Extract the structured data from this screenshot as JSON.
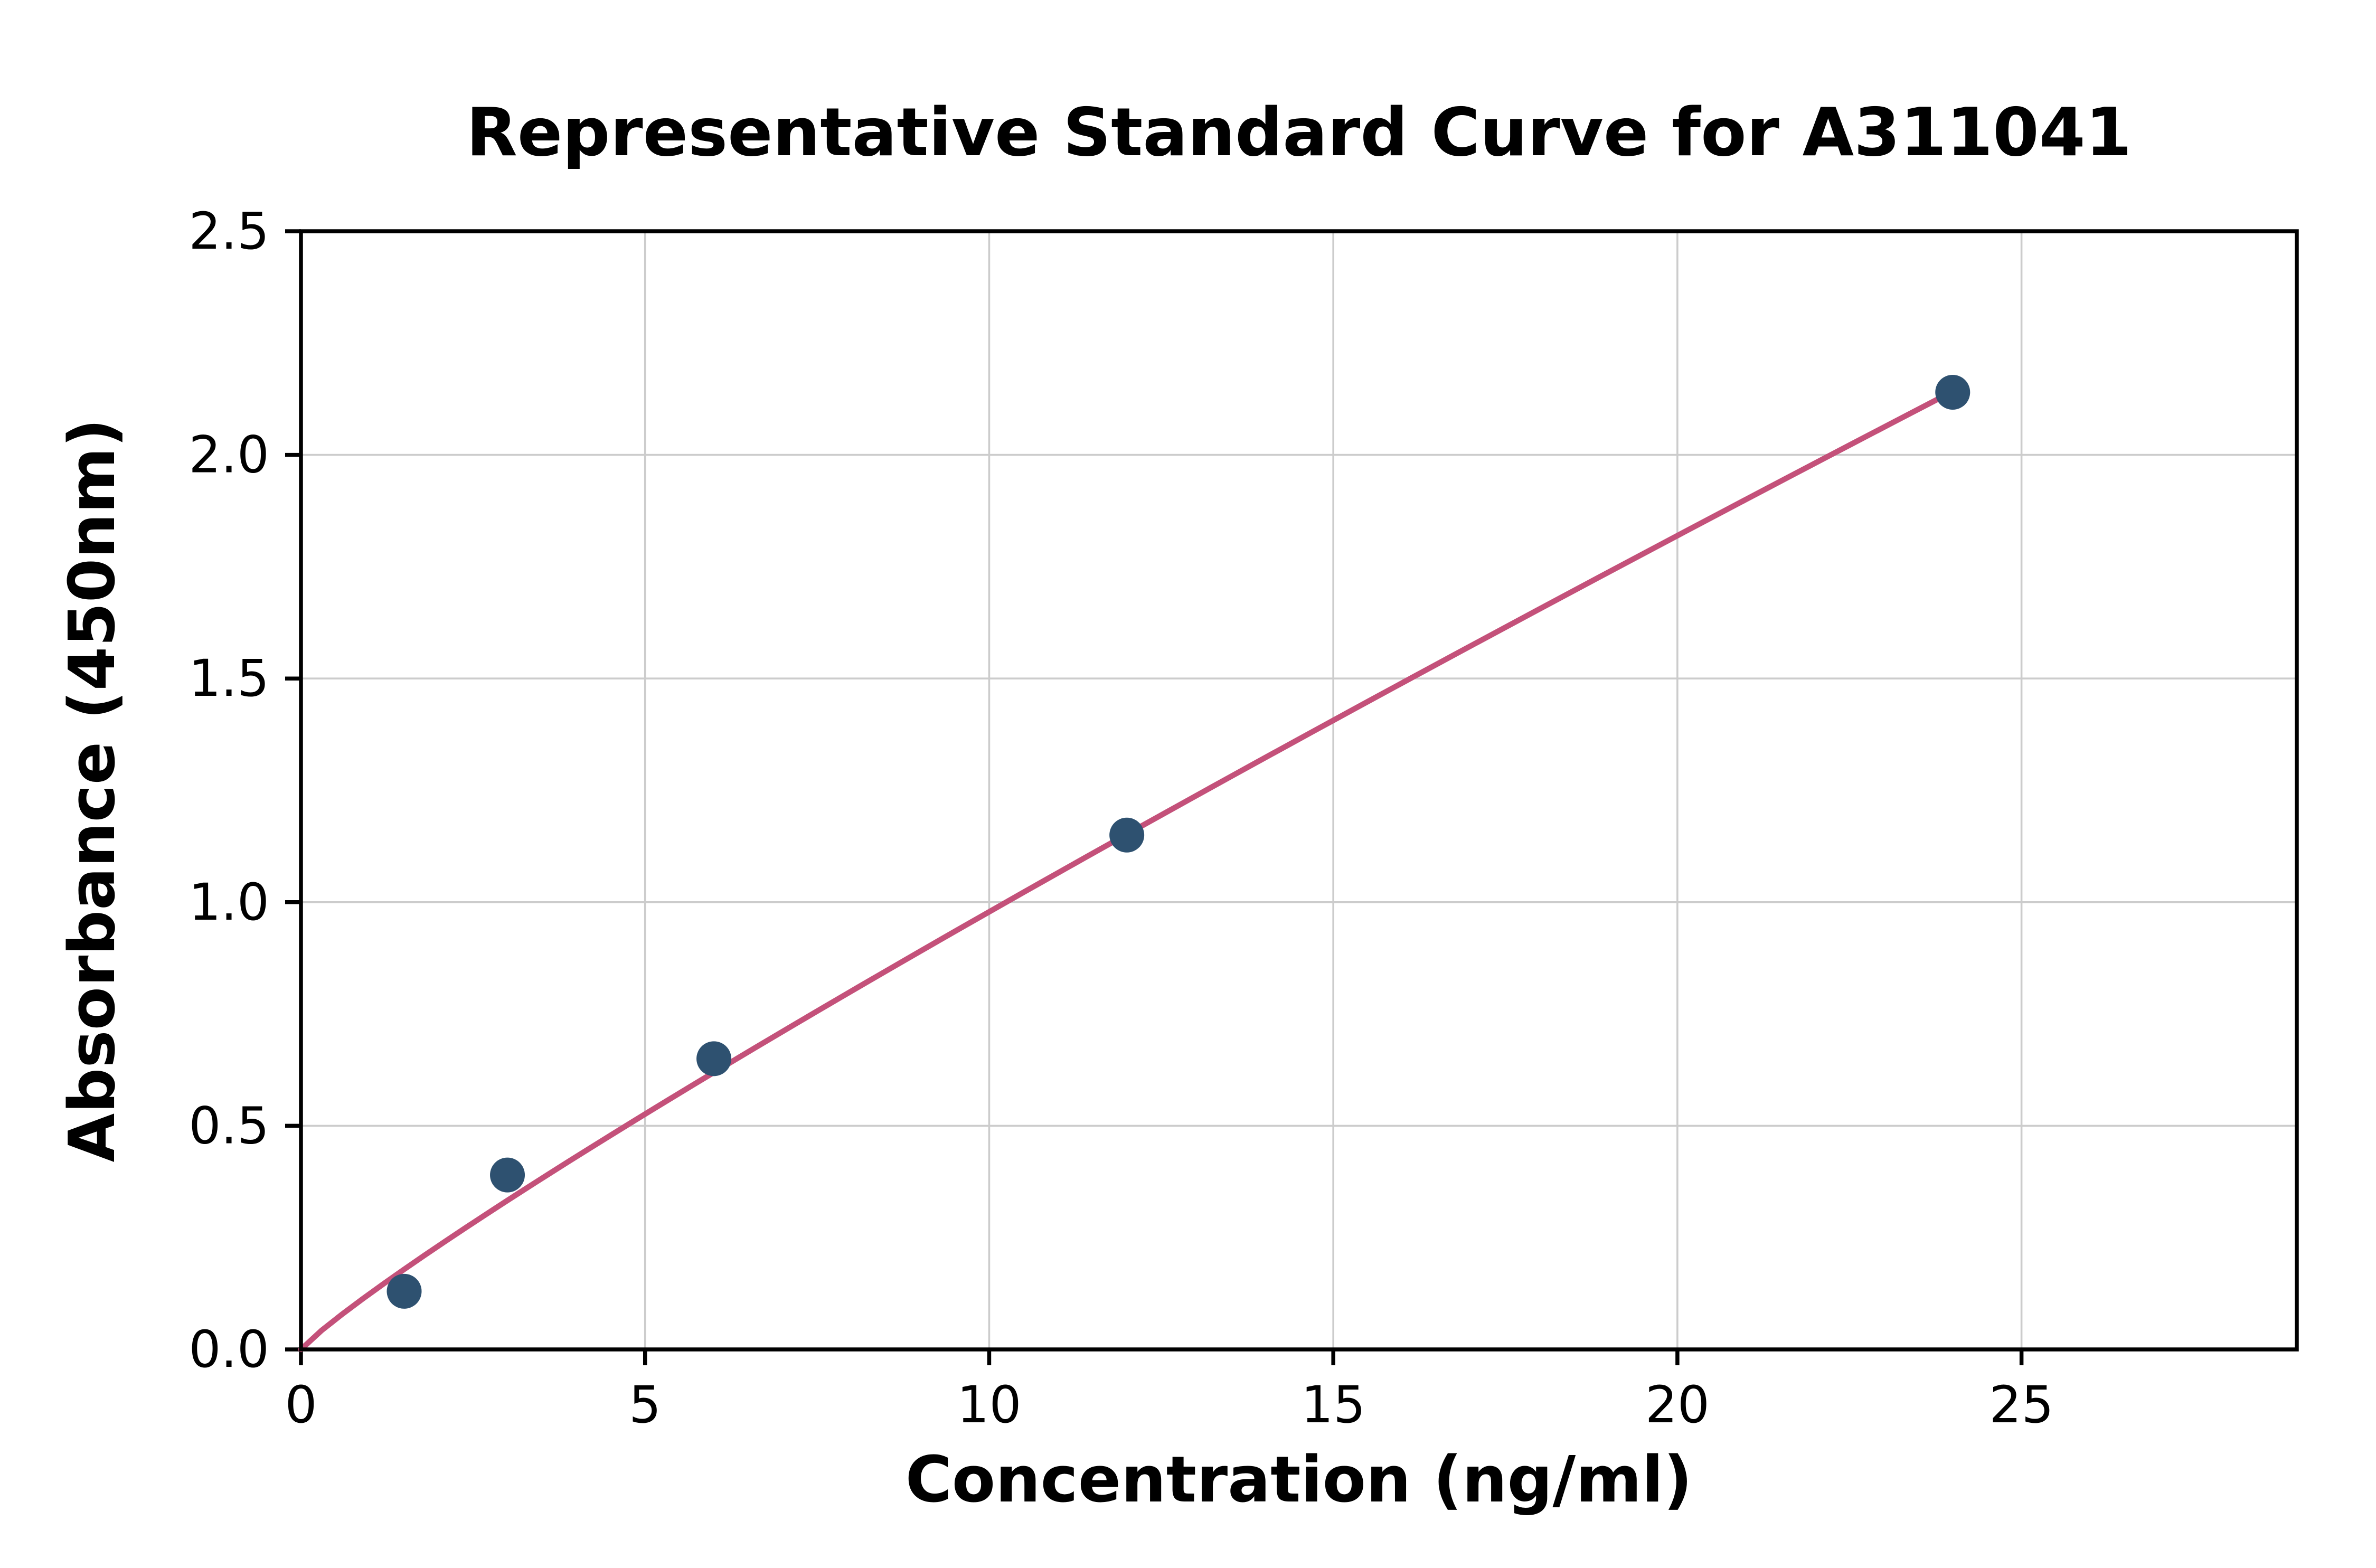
{
  "chart_data": {
    "type": "scatter",
    "title": "Representative Standard Curve for A311041",
    "xlabel": "Concentration (ng/ml)",
    "ylabel": "Absorbance (450nm)",
    "xlim": [
      0,
      29
    ],
    "ylim": [
      0,
      2.5
    ],
    "x_ticks": [
      0,
      5,
      10,
      15,
      20,
      25
    ],
    "x_tick_labels": [
      "0",
      "5",
      "10",
      "15",
      "20",
      "25"
    ],
    "y_ticks": [
      0,
      0.5,
      1,
      1.5,
      2,
      2.5
    ],
    "y_tick_labels": [
      "0.0",
      "0.5",
      "1.0",
      "1.5",
      "2.0",
      "2.5"
    ],
    "grid": true,
    "legend": "none",
    "points": {
      "x": [
        1.5,
        3,
        6,
        12,
        24
      ],
      "y": [
        0.13,
        0.39,
        0.65,
        1.15,
        2.14
      ]
    },
    "fit_curve": {
      "type": "power",
      "a": 0.1246,
      "b": 0.895,
      "x_start": 0,
      "x_end": 24
    },
    "colors": {
      "marker": "#2e5170",
      "line": "#c4517a",
      "grid": "#cccccc",
      "axis": "#000000",
      "background": "#ffffff"
    }
  }
}
